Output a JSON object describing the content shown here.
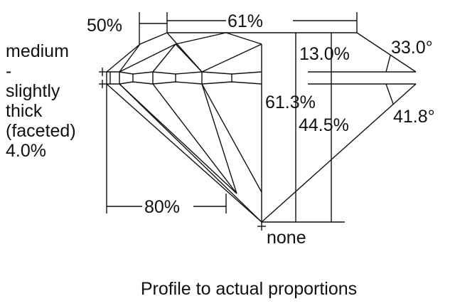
{
  "diagram": {
    "caption": "Profile to actual proportions",
    "girdle_label": [
      "medium",
      "-",
      "slightly",
      "thick",
      "(faceted)",
      "4.0%"
    ],
    "lower_half_length": "80%",
    "star_length": "50%",
    "table": "61%",
    "crown_height": "13.0%",
    "crown_angle": "33.0°",
    "total_depth": "61.3%",
    "pavilion_depth": "44.5%",
    "pavilion_angle": "41.8°",
    "culet": "none"
  }
}
